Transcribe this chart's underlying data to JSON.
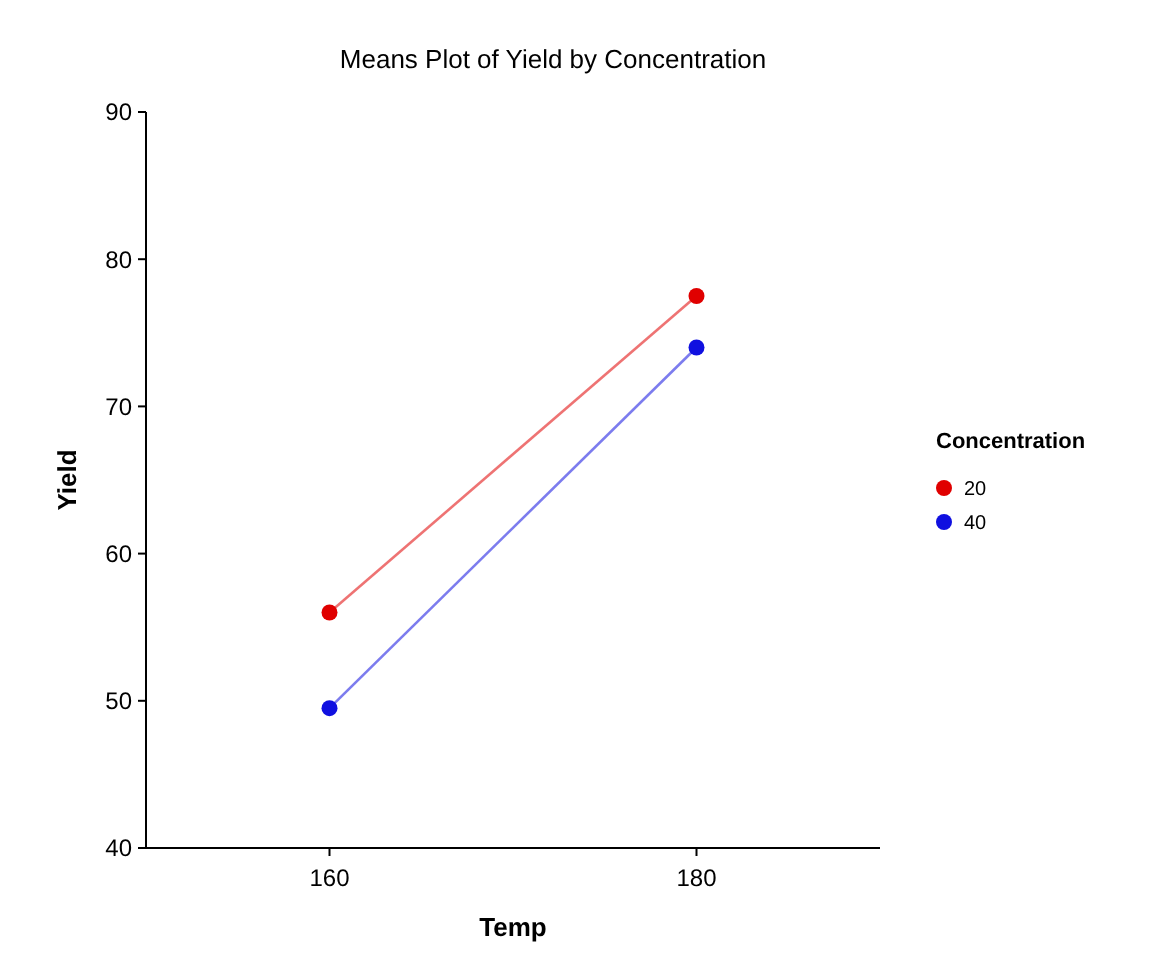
{
  "chart_data": {
    "type": "line",
    "title": "Means Plot of Yield by Concentration",
    "xlabel": "Temp",
    "ylabel": "Yield",
    "legend_title": "Concentration",
    "x": [
      160,
      180
    ],
    "series": [
      {
        "name": "20",
        "color": "#e00000",
        "values": [
          56,
          77.5
        ]
      },
      {
        "name": "40",
        "color": "#1010e0",
        "values": [
          49.5,
          74
        ]
      }
    ],
    "xlim": [
      150,
      190
    ],
    "xticks": [
      160,
      180
    ],
    "ylim": [
      40,
      90
    ],
    "yticks": [
      40,
      50,
      60,
      70,
      80,
      90
    ],
    "grid": false,
    "legend": "right",
    "marker": "circle",
    "line_style": "solid"
  }
}
